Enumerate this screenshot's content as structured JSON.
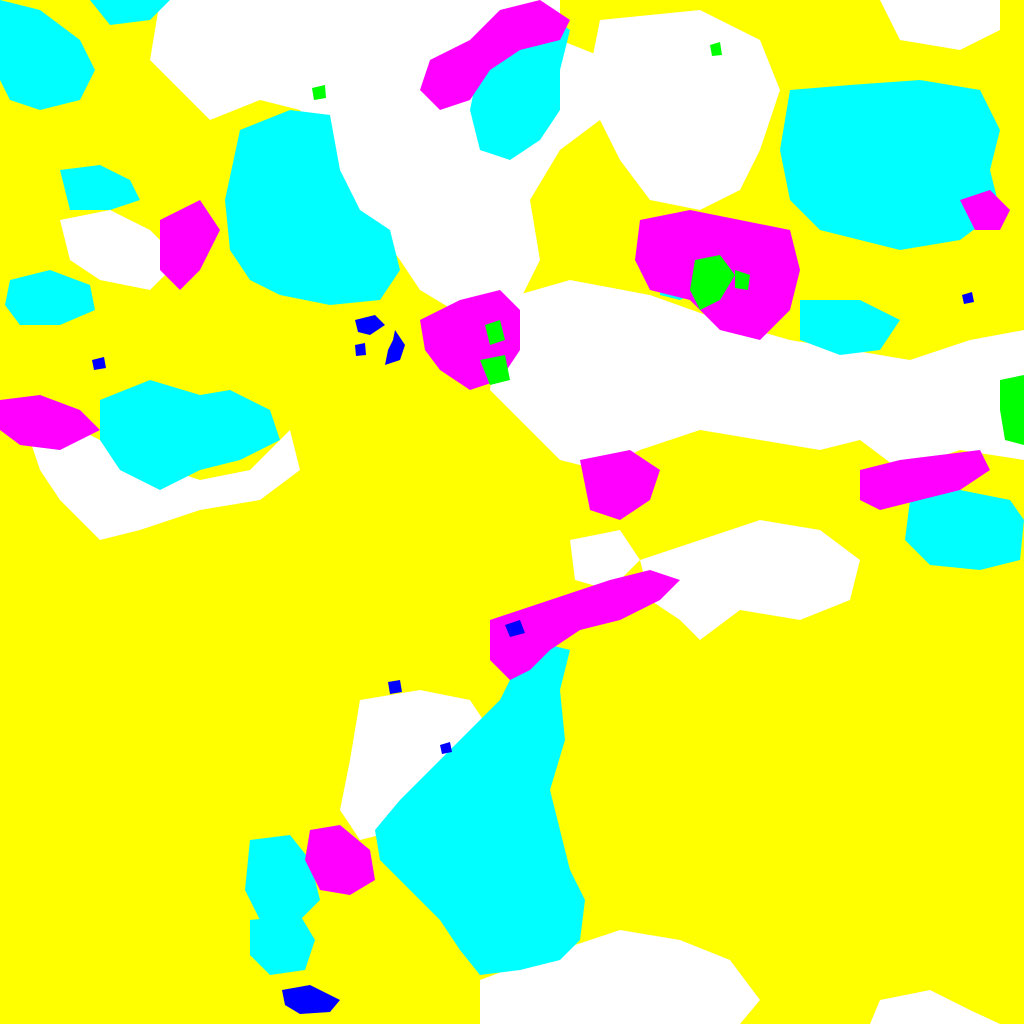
{
  "map": {
    "type": "segmentation-mask",
    "classes": [
      {
        "name": "yellow-region",
        "color": "#ffff00"
      },
      {
        "name": "white-region",
        "color": "#ffffff"
      },
      {
        "name": "cyan-region",
        "color": "#00ffff"
      },
      {
        "name": "magenta-region",
        "color": "#ff00ff"
      },
      {
        "name": "green-region",
        "color": "#00ff00"
      },
      {
        "name": "blue-region",
        "color": "#0000ff"
      }
    ]
  }
}
